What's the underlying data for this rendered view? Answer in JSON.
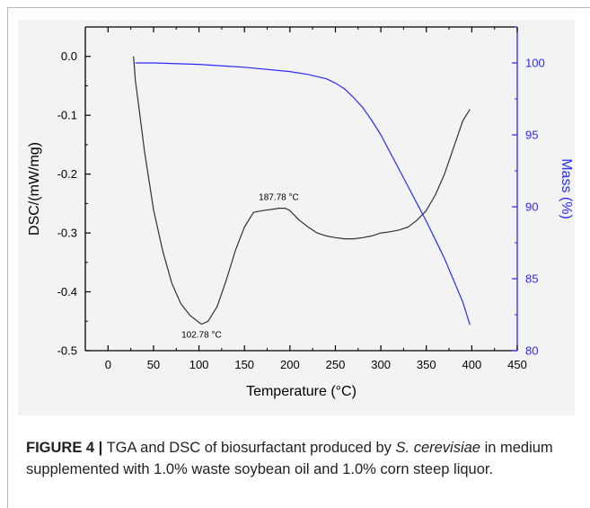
{
  "figure": {
    "label": "FIGURE 4 |",
    "caption_before": " TGA and DSC of biosurfactant produced by ",
    "caption_species": "S. cerevisiae",
    "caption_after": " in medium supplemented with 1.0% waste soybean oil and 1.0% corn steep liquor."
  },
  "colors": {
    "dsc": "#333333",
    "mass": "#2b2bff",
    "background": "#f3f3f3"
  },
  "chart_data": {
    "type": "line",
    "title": "",
    "xlabel": "Temperature (°C)",
    "ylabel_left": "DSC/(mW/mg)",
    "ylabel_right": "Mass  (%)",
    "xlim": [
      -25,
      450
    ],
    "ylim_left": [
      -0.5,
      0.05
    ],
    "ylim_right": [
      80,
      102.5
    ],
    "x_ticks": [
      0,
      50,
      100,
      150,
      200,
      250,
      300,
      350,
      400,
      450
    ],
    "y_ticks_left": [
      0.0,
      -0.1,
      -0.2,
      -0.3,
      -0.4,
      -0.5
    ],
    "y_tick_labels_left": [
      "0.0",
      "-0.1",
      "-0.2",
      "-0.3",
      "-0.4",
      "-0.5"
    ],
    "y_ticks_right": [
      80,
      85,
      90,
      95,
      100
    ],
    "grid": false,
    "series": [
      {
        "axis": "left",
        "x": [
          28,
          30,
          35,
          40,
          50,
          60,
          70,
          80,
          90,
          100,
          103,
          110,
          120,
          130,
          140,
          150,
          160,
          170,
          180,
          188,
          195,
          200,
          210,
          220,
          230,
          240,
          250,
          260,
          270,
          280,
          290,
          300,
          310,
          320,
          330,
          340,
          350,
          360,
          370,
          380,
          390,
          398
        ],
        "y": [
          0.0,
          -0.04,
          -0.1,
          -0.16,
          -0.26,
          -0.33,
          -0.385,
          -0.42,
          -0.44,
          -0.452,
          -0.455,
          -0.45,
          -0.425,
          -0.38,
          -0.33,
          -0.29,
          -0.265,
          -0.262,
          -0.26,
          -0.258,
          -0.258,
          -0.262,
          -0.278,
          -0.29,
          -0.3,
          -0.305,
          -0.308,
          -0.31,
          -0.31,
          -0.308,
          -0.305,
          -0.3,
          -0.298,
          -0.295,
          -0.29,
          -0.278,
          -0.262,
          -0.235,
          -0.2,
          -0.155,
          -0.11,
          -0.09
        ]
      },
      {
        "axis": "right",
        "x": [
          30,
          50,
          100,
          150,
          200,
          220,
          240,
          250,
          260,
          270,
          280,
          290,
          300,
          310,
          320,
          330,
          340,
          350,
          360,
          370,
          380,
          390,
          398
        ],
        "y": [
          100.0,
          100.0,
          99.9,
          99.7,
          99.4,
          99.2,
          98.9,
          98.6,
          98.2,
          97.6,
          96.9,
          96.0,
          95.0,
          93.8,
          92.6,
          91.4,
          90.2,
          89.0,
          87.7,
          86.4,
          84.9,
          83.4,
          81.8
        ]
      }
    ],
    "annotations": [
      {
        "text": "102.78 °C",
        "x": 102.78,
        "y": -0.455
      },
      {
        "text": "187.78 °C",
        "x": 187.78,
        "y": -0.258
      }
    ]
  }
}
